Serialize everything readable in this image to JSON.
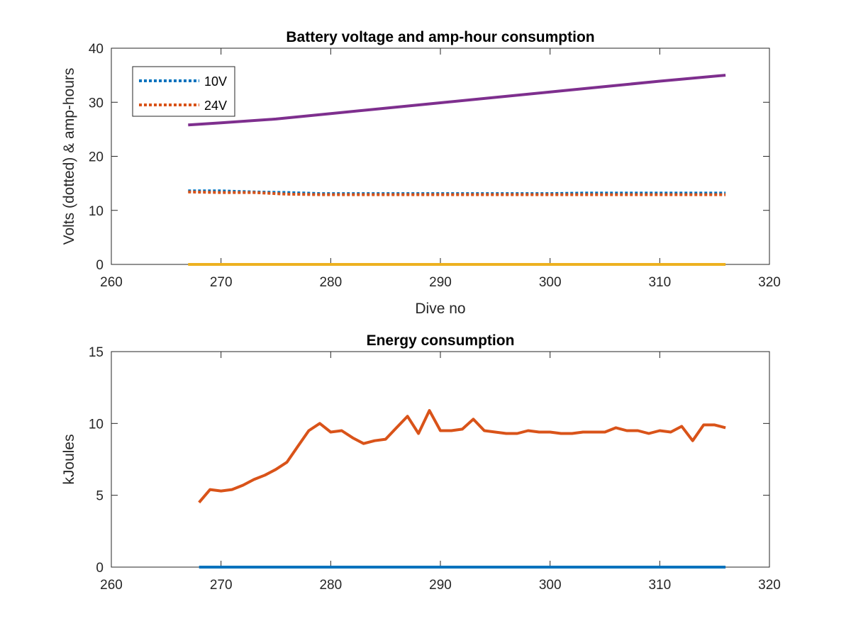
{
  "chart_data": [
    {
      "type": "line",
      "title": "Battery voltage and amp-hour consumption",
      "xlabel": "Dive no",
      "ylabel": "Volts (dotted) & amp-hours",
      "xlim": [
        260,
        320
      ],
      "ylim": [
        0,
        40
      ],
      "xticks": [
        260,
        270,
        280,
        290,
        300,
        310,
        320
      ],
      "yticks": [
        0,
        10,
        20,
        30,
        40
      ],
      "grid": false,
      "legend_position": "top-left",
      "series": [
        {
          "name": "10V",
          "style": "dotted",
          "color": "#0072BD",
          "x": [
            267,
            270,
            273,
            276,
            279,
            282,
            285,
            288,
            291,
            294,
            297,
            300,
            303,
            306,
            309,
            312,
            316
          ],
          "y": [
            13.6,
            13.6,
            13.4,
            13.3,
            13.1,
            13.1,
            13.1,
            13.1,
            13.1,
            13.1,
            13.1,
            13.1,
            13.2,
            13.2,
            13.2,
            13.2,
            13.2
          ]
        },
        {
          "name": "24V",
          "style": "dotted",
          "color": "#D95319",
          "x": [
            267,
            270,
            273,
            276,
            279,
            282,
            285,
            288,
            291,
            294,
            297,
            300,
            303,
            306,
            309,
            312,
            316
          ],
          "y": [
            13.4,
            13.3,
            13.3,
            13.0,
            12.9,
            12.9,
            12.9,
            12.9,
            12.9,
            12.9,
            12.9,
            12.9,
            12.9,
            12.9,
            12.9,
            12.9,
            12.9
          ]
        },
        {
          "style": "solid",
          "color": "#7E2F8E",
          "x": [
            267,
            270,
            275,
            280,
            285,
            290,
            295,
            300,
            305,
            310,
            316
          ],
          "y": [
            25.8,
            26.2,
            26.9,
            27.9,
            28.9,
            29.9,
            30.9,
            31.9,
            32.9,
            33.9,
            35.0
          ]
        },
        {
          "style": "solid",
          "color": "#EDB120",
          "x": [
            267,
            316
          ],
          "y": [
            0,
            0
          ]
        }
      ],
      "legend": [
        {
          "label": "10V",
          "color": "#0072BD"
        },
        {
          "label": "24V",
          "color": "#D95319"
        }
      ]
    },
    {
      "type": "line",
      "title": "Energy consumption",
      "xlabel": "",
      "ylabel": "kJoules",
      "xlim": [
        260,
        320
      ],
      "ylim": [
        0,
        15
      ],
      "xticks": [
        260,
        270,
        280,
        290,
        300,
        310,
        320
      ],
      "yticks": [
        0,
        5,
        10,
        15
      ],
      "grid": false,
      "series": [
        {
          "style": "solid",
          "color": "#D95319",
          "x": [
            268,
            269,
            270,
            271,
            272,
            273,
            274,
            275,
            276,
            277,
            278,
            279,
            280,
            281,
            282,
            283,
            284,
            285,
            286,
            287,
            288,
            289,
            290,
            291,
            292,
            293,
            294,
            295,
            296,
            297,
            298,
            299,
            300,
            301,
            302,
            303,
            304,
            305,
            306,
            307,
            308,
            309,
            310,
            311,
            312,
            313,
            314,
            315,
            316
          ],
          "y": [
            4.5,
            5.4,
            5.3,
            5.4,
            5.7,
            6.1,
            6.4,
            6.8,
            7.3,
            8.4,
            9.5,
            10.0,
            9.4,
            9.5,
            9.0,
            8.6,
            8.8,
            8.9,
            9.7,
            10.5,
            9.3,
            10.9,
            9.5,
            9.5,
            9.6,
            10.3,
            9.5,
            9.4,
            9.3,
            9.3,
            9.5,
            9.4,
            9.4,
            9.3,
            9.3,
            9.4,
            9.4,
            9.4,
            9.7,
            9.5,
            9.5,
            9.3,
            9.5,
            9.4,
            9.8,
            8.8,
            9.9,
            9.9,
            9.7
          ]
        },
        {
          "style": "solid",
          "color": "#0072BD",
          "x": [
            268,
            316
          ],
          "y": [
            0,
            0
          ]
        }
      ]
    }
  ]
}
